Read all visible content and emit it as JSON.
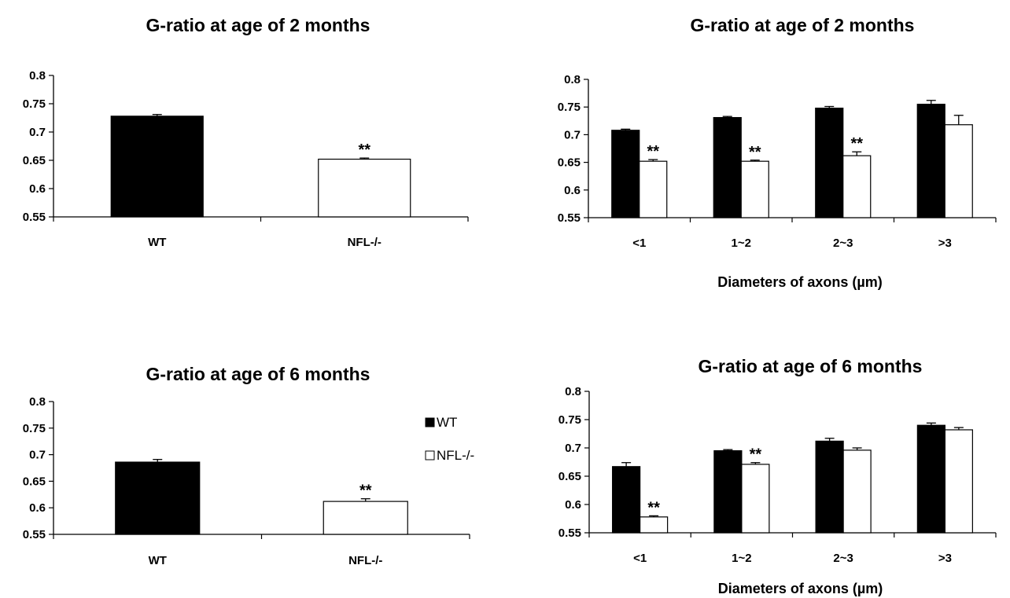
{
  "chart_data": [
    {
      "type": "bar",
      "title": "G-ratio at age of 2 months",
      "xlabel": "",
      "ylabel": "",
      "ylim": [
        0.55,
        0.8
      ],
      "yticks": [
        "0.55",
        "0.6",
        "0.65",
        "0.7",
        "0.75",
        "0.8"
      ],
      "grid": false,
      "categories": [
        "WT",
        "NFL-/-"
      ],
      "series": [
        {
          "name": "WT",
          "color": "#000000",
          "values": [
            0.728,
            null
          ],
          "errors": [
            0.003,
            null
          ]
        },
        {
          "name": "NFL-/-",
          "color": "#ffffff",
          "values": [
            null,
            0.652
          ],
          "errors": [
            null,
            0.002
          ]
        }
      ],
      "annotations": [
        {
          "category": "NFL-/-",
          "series": "NFL-/-",
          "text": "**"
        }
      ]
    },
    {
      "type": "bar",
      "title": "G-ratio at age of 2 months",
      "xlabel": "Diameters of axons (µm)",
      "ylabel": "",
      "ylim": [
        0.55,
        0.8
      ],
      "yticks": [
        "0.55",
        "0.6",
        "0.65",
        "0.7",
        "0.75",
        "0.8"
      ],
      "grid": false,
      "categories": [
        "<1",
        "1~2",
        "2~3",
        ">3"
      ],
      "series": [
        {
          "name": "WT",
          "color": "#000000",
          "values": [
            0.708,
            0.731,
            0.748,
            0.755
          ],
          "errors": [
            0.002,
            0.002,
            0.003,
            0.007
          ]
        },
        {
          "name": "NFL-/-",
          "color": "#ffffff",
          "values": [
            0.652,
            0.652,
            0.662,
            0.718
          ],
          "errors": [
            0.003,
            0.002,
            0.007,
            0.017
          ]
        }
      ],
      "annotations": [
        {
          "category": "<1",
          "series": "NFL-/-",
          "text": "**"
        },
        {
          "category": "1~2",
          "series": "NFL-/-",
          "text": "**"
        },
        {
          "category": "2~3",
          "series": "NFL-/-",
          "text": "**"
        }
      ]
    },
    {
      "type": "bar",
      "title": "G-ratio at age of 6 months",
      "xlabel": "",
      "ylabel": "",
      "ylim": [
        0.55,
        0.8
      ],
      "yticks": [
        "0.55",
        "0.6",
        "0.65",
        "0.7",
        "0.75",
        "0.8"
      ],
      "grid": false,
      "legend": "right",
      "categories": [
        "WT",
        "NFL-/-"
      ],
      "series": [
        {
          "name": "WT",
          "color": "#000000",
          "values": [
            0.686,
            null
          ],
          "errors": [
            0.005,
            null
          ]
        },
        {
          "name": "NFL-/-",
          "color": "#ffffff",
          "values": [
            null,
            0.612
          ],
          "errors": [
            null,
            0.005
          ]
        }
      ],
      "annotations": [
        {
          "category": "NFL-/-",
          "series": "NFL-/-",
          "text": "**"
        }
      ]
    },
    {
      "type": "bar",
      "title": "G-ratio at age of 6 months",
      "xlabel": "Diameters of axons (µm)",
      "ylabel": "",
      "ylim": [
        0.55,
        0.8
      ],
      "yticks": [
        "0.55",
        "0.6",
        "0.65",
        "0.7",
        "0.75",
        "0.8"
      ],
      "grid": false,
      "categories": [
        "<1",
        "1~2",
        "2~3",
        ">3"
      ],
      "series": [
        {
          "name": "WT",
          "color": "#000000",
          "values": [
            0.667,
            0.695,
            0.712,
            0.74
          ],
          "errors": [
            0.007,
            0.002,
            0.005,
            0.004
          ]
        },
        {
          "name": "NFL-/-",
          "color": "#ffffff",
          "values": [
            0.578,
            0.671,
            0.696,
            0.732
          ],
          "errors": [
            0.002,
            0.003,
            0.004,
            0.004
          ]
        }
      ],
      "annotations": [
        {
          "category": "<1",
          "series": "NFL-/-",
          "text": "**"
        },
        {
          "category": "1~2",
          "series": "NFL-/-",
          "text": "**"
        }
      ]
    }
  ]
}
